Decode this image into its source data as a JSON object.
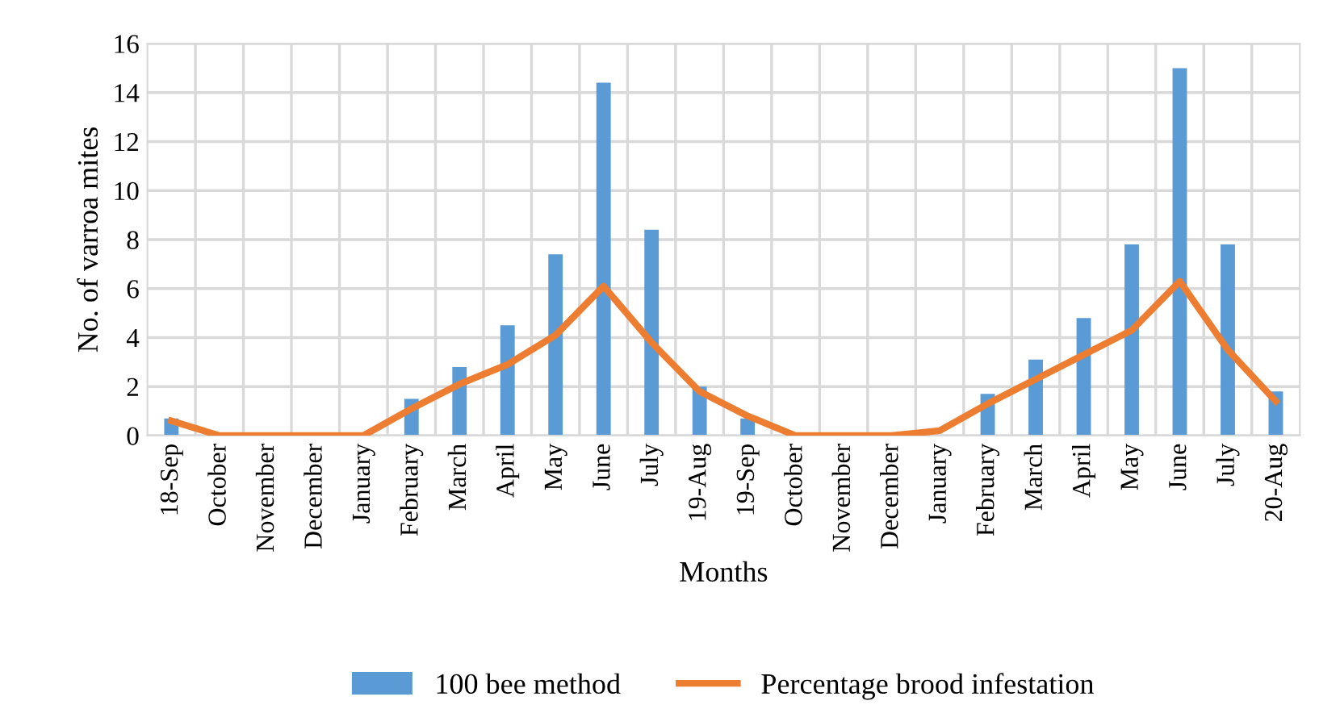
{
  "chart_data": {
    "type": "bar",
    "xlabel": "Months",
    "ylabel": "No. of varroa mites",
    "categories": [
      "18-Sep",
      "October",
      "November",
      "December",
      "January",
      "February",
      "March",
      "April",
      "May",
      "June",
      "July",
      "19-Aug",
      "19-Sep",
      "October",
      "November",
      "December",
      "January",
      "February",
      "March",
      "April",
      "May",
      "June",
      "July",
      "20-Aug"
    ],
    "series": [
      {
        "name": "100 bee method",
        "color": "#5b9bd5",
        "values": [
          0.7,
          0,
          0,
          0,
          0,
          1.5,
          2.8,
          4.5,
          7.4,
          14.4,
          8.4,
          2.0,
          0.7,
          0,
          0,
          0,
          0,
          1.7,
          3.1,
          4.8,
          7.8,
          15.0,
          7.8,
          1.8
        ]
      },
      {
        "name": "Percentage brood infestation",
        "type": "line",
        "color": "#ed7d31",
        "values": [
          0.6,
          0,
          0,
          0,
          0,
          1.1,
          2.1,
          2.9,
          4.1,
          6.1,
          3.8,
          1.8,
          0.8,
          0,
          0,
          0,
          0.2,
          1.3,
          2.3,
          3.3,
          4.3,
          6.3,
          3.5,
          1.4
        ]
      }
    ],
    "ylim": [
      0,
      16
    ],
    "yticks": [
      0,
      2,
      4,
      6,
      8,
      10,
      12,
      14,
      16
    ],
    "grid": true,
    "legend": "bottom",
    "marker": "none",
    "line_style": "solid"
  }
}
